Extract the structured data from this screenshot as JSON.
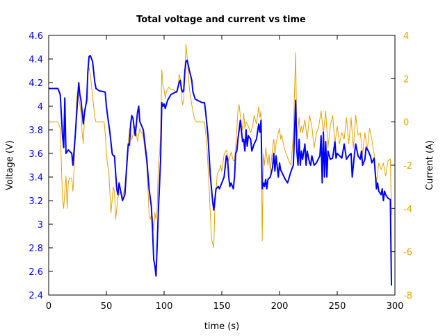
{
  "chart_data": {
    "type": "line",
    "title": "Total voltage and current vs time",
    "xlabel": "time (s)",
    "ylabel": "Voltage (V)",
    "y2label": "Current (A)",
    "xlim": [
      0,
      300
    ],
    "ylim": [
      2.4,
      4.6
    ],
    "y2lim": [
      -8,
      4
    ],
    "xticks": [
      0,
      50,
      100,
      150,
      200,
      250,
      300
    ],
    "yticks": [
      "2.4",
      "2.6",
      "2.8",
      "3",
      "3.2",
      "3.4",
      "3.6",
      "3.8",
      "4",
      "4.2",
      "4.4",
      "4.6"
    ],
    "y2ticks": [
      "-8",
      "-6",
      "-4",
      "-2",
      "0",
      "2",
      "4"
    ],
    "grid": false,
    "colors": {
      "voltage": "#0000ff",
      "current": "#e8a000",
      "left_axis": "#0000ff",
      "right_axis": "#e8a000"
    },
    "series": [
      {
        "axis": "left",
        "t": [
          0,
          8,
          10,
          12,
          13,
          14,
          15,
          17,
          20,
          21,
          23,
          26,
          27,
          28,
          30,
          31,
          33,
          34,
          35,
          36,
          38,
          40,
          41,
          44,
          49,
          50,
          51,
          53,
          55,
          56,
          57,
          59,
          60,
          61,
          62,
          64,
          66,
          68,
          69,
          70,
          71,
          72,
          73,
          75,
          77,
          78,
          79,
          82,
          85,
          87,
          89,
          90,
          91,
          92,
          93,
          95,
          97,
          98,
          99,
          100,
          101,
          103,
          106,
          110,
          111,
          113,
          114,
          115,
          116,
          117,
          118,
          119,
          120,
          122,
          124,
          125,
          127,
          133,
          135,
          136,
          138,
          140,
          142,
          143,
          145,
          147,
          148,
          150,
          152,
          154,
          155,
          156,
          157,
          158,
          160,
          161,
          162,
          163,
          164,
          166,
          168,
          169,
          170,
          171,
          172,
          173,
          175,
          176,
          178,
          180,
          182,
          183,
          184,
          185,
          186,
          187,
          188,
          189,
          190,
          192,
          194,
          195,
          196,
          197,
          199,
          200,
          201,
          203,
          205,
          207,
          210,
          212,
          214,
          215,
          216,
          217,
          218,
          219,
          220,
          222,
          223,
          224,
          226,
          227,
          228,
          230,
          232,
          235,
          236,
          237,
          238,
          239,
          240,
          241,
          242,
          244,
          246,
          248,
          249,
          250,
          252,
          254,
          256,
          258,
          260,
          262,
          263,
          265,
          266,
          268,
          270,
          271,
          272,
          274,
          275,
          277,
          279,
          280,
          282,
          284,
          285,
          286,
          288,
          289,
          290,
          291,
          292,
          294,
          296,
          297
        ],
        "v": [
          4.15,
          4.15,
          4.1,
          3.75,
          3.65,
          4.07,
          3.6,
          3.63,
          3.6,
          3.5,
          3.75,
          4.2,
          4.1,
          4.05,
          3.85,
          3.95,
          4.05,
          4.3,
          4.42,
          4.43,
          4.38,
          4.2,
          4.15,
          4.13,
          4.12,
          4.0,
          3.92,
          3.78,
          3.6,
          3.58,
          3.58,
          3.3,
          3.25,
          3.35,
          3.3,
          3.2,
          3.25,
          3.55,
          3.68,
          3.67,
          3.85,
          3.92,
          3.9,
          3.75,
          3.95,
          4.0,
          3.87,
          3.8,
          3.55,
          3.3,
          3.15,
          2.95,
          2.7,
          2.65,
          2.56,
          3.1,
          3.55,
          4.03,
          4.0,
          4.02,
          3.98,
          4.05,
          4.1,
          4.12,
          4.12,
          4.2,
          4.22,
          4.15,
          4.12,
          4.13,
          4.3,
          4.38,
          4.39,
          4.3,
          4.22,
          4.12,
          4.06,
          4.03,
          4.03,
          3.95,
          3.75,
          3.42,
          3.2,
          3.12,
          3.3,
          3.32,
          3.3,
          3.35,
          3.4,
          3.58,
          3.55,
          3.4,
          3.32,
          3.35,
          3.3,
          3.4,
          3.6,
          3.62,
          3.72,
          3.88,
          3.7,
          3.72,
          3.62,
          3.8,
          3.66,
          3.75,
          3.72,
          3.62,
          3.68,
          3.72,
          3.85,
          3.78,
          3.88,
          3.3,
          3.35,
          3.32,
          3.38,
          3.3,
          3.38,
          3.4,
          3.48,
          3.6,
          3.45,
          3.58,
          3.4,
          3.52,
          3.46,
          3.42,
          3.38,
          3.35,
          3.45,
          3.5,
          4.05,
          3.62,
          3.5,
          3.72,
          3.5,
          3.62,
          3.55,
          3.68,
          3.5,
          3.62,
          3.52,
          3.5,
          3.58,
          3.5,
          3.52,
          3.58,
          3.75,
          3.35,
          3.78,
          3.4,
          3.7,
          3.4,
          3.62,
          3.55,
          3.56,
          3.7,
          3.56,
          3.6,
          3.58,
          3.56,
          3.68,
          3.55,
          3.58,
          3.6,
          3.4,
          3.6,
          3.68,
          3.58,
          3.55,
          3.62,
          3.5,
          3.55,
          3.65,
          3.62,
          3.57,
          3.52,
          3.56,
          3.3,
          3.35,
          3.28,
          3.25,
          3.3,
          3.2,
          3.28,
          3.25,
          3.22,
          3.21,
          2.48
        ]
      },
      {
        "axis": "right",
        "t": [
          0,
          8,
          10,
          11,
          12,
          13,
          14,
          15,
          16,
          17,
          18,
          20,
          21,
          22,
          24,
          25,
          26,
          28,
          29,
          30,
          31,
          32,
          34,
          35,
          36,
          38,
          40,
          41,
          48,
          49,
          50,
          51,
          52,
          54,
          56,
          57,
          58,
          60,
          62,
          64,
          66,
          68,
          70,
          72,
          75,
          77,
          79,
          82,
          85,
          87,
          88,
          89,
          90,
          91,
          92,
          93,
          94,
          95,
          96,
          97,
          98,
          99,
          100,
          101,
          102,
          104,
          106,
          108,
          110,
          112,
          113,
          114,
          115,
          116,
          117,
          118,
          119,
          120,
          121,
          122,
          124,
          126,
          128,
          135,
          137,
          139,
          141,
          142,
          143,
          144,
          146,
          148,
          149,
          150,
          152,
          154,
          156,
          158,
          160,
          161,
          162,
          164,
          165,
          166,
          168,
          169,
          170,
          171,
          173,
          175,
          177,
          178,
          180,
          182,
          183,
          184,
          185,
          186,
          187,
          188,
          190,
          191,
          192,
          194,
          195,
          196,
          197,
          199,
          200,
          201,
          202,
          204,
          206,
          208,
          210,
          212,
          214,
          215,
          216,
          217,
          218,
          219,
          220,
          222,
          224,
          226,
          228,
          230,
          232,
          234,
          236,
          238,
          240,
          242,
          244,
          246,
          248,
          250,
          252,
          254,
          256,
          258,
          260,
          262,
          264,
          266,
          268,
          270,
          272,
          274,
          276,
          278,
          280,
          282,
          284,
          286,
          288,
          290,
          292,
          294,
          296,
          297
        ],
        "v": [
          0,
          0,
          -0.3,
          -2,
          -3.5,
          -4,
          -3.2,
          -2.5,
          -4,
          -2.8,
          -2.6,
          -2.6,
          -3.2,
          -2.2,
          0.8,
          1.4,
          1.2,
          0.4,
          -0.5,
          -1,
          0.2,
          0.6,
          2.3,
          2.5,
          2.2,
          1.2,
          0.2,
          0,
          0,
          -0.5,
          -1.4,
          -2,
          -2.2,
          -4.2,
          -3,
          -3.2,
          -4.5,
          -3.5,
          -3.2,
          -3.5,
          -3,
          -1.5,
          -0.3,
          -0.8,
          -0.2,
          -0.9,
          -0.3,
          -0.7,
          -2,
          -4.2,
          -4.5,
          -4.3,
          -4.4,
          -5,
          -4.2,
          -4.5,
          -4.1,
          -2,
          -1.5,
          -0.5,
          2.4,
          1.7,
          1.5,
          1.1,
          1.4,
          1.6,
          1.5,
          1.5,
          1.4,
          1.5,
          2.2,
          2.0,
          1.2,
          0.8,
          1.0,
          2.5,
          3.6,
          3.0,
          2.2,
          1.5,
          0.8,
          0.2,
          0,
          0,
          -1,
          -3,
          -5.4,
          -5.6,
          -5.8,
          -4,
          -2.4,
          -2.2,
          -2.0,
          -2.3,
          -1.5,
          -1.3,
          -1.8,
          -1.4,
          -1.8,
          -1.8,
          -1.2,
          0.5,
          0.8,
          0.3,
          -0.4,
          0.4,
          -0.3,
          0,
          -0.2,
          -0.5,
          -0.1,
          0.3,
          -0.1,
          0.7,
          0.2,
          0.5,
          -5.5,
          -1.5,
          -2,
          -1.2,
          -2,
          -1.5,
          -2.3,
          -1.2,
          -0.8,
          -1.5,
          -1,
          -0.5,
          -0.3,
          -0.8,
          -0.6,
          -1.2,
          -1.5,
          -1.8,
          -2.0,
          -0.5,
          3.2,
          -0.8,
          -0.3,
          0.2,
          -0.5,
          -0.2,
          -0.5,
          0.1,
          -0.8,
          0.3,
          -0.2,
          -1.2,
          -0.5,
          -0.2,
          0.5,
          -0.5,
          0.5,
          -1.2,
          -0.2,
          0.3,
          -1,
          -0.2,
          -1,
          -0.5,
          -0.8,
          0.2,
          -1.0,
          0.2,
          -1.2,
          0.3,
          -0.6,
          -0.5,
          -1.5,
          -0.5,
          -1.3,
          -0.3,
          -0.8,
          -1.5,
          -2.8,
          -1.9,
          -2.2,
          -1.9,
          -2.5,
          -1.8,
          -1.7,
          -4.3
        ]
      }
    ]
  }
}
